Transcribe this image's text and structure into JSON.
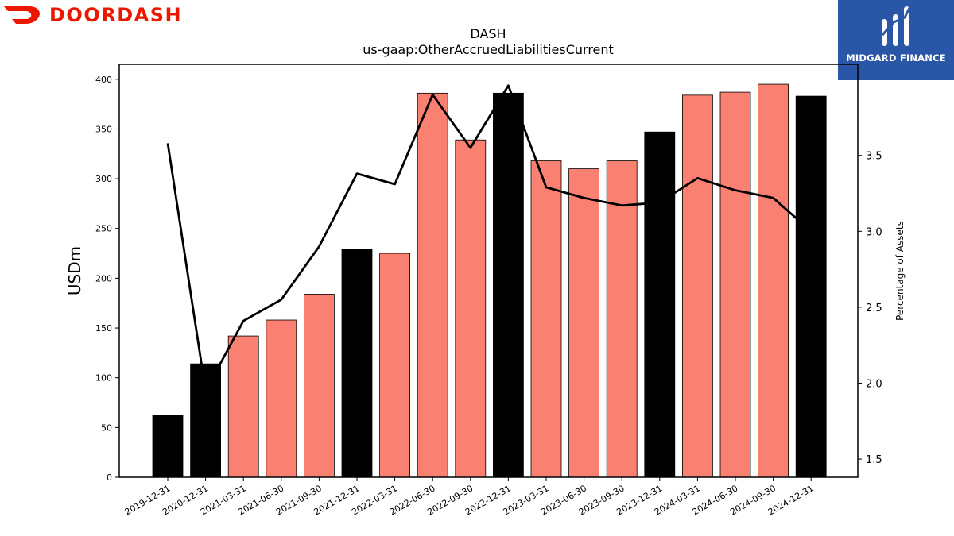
{
  "header": {
    "brand_name": "DOORDASH",
    "brand_icon": "doordash-dash-icon",
    "brand_color": "#eb1700",
    "badge_name": "MIDGARD FINANCE",
    "badge_icon": "midgard-logo-icon",
    "badge_color": "#2a56a8"
  },
  "chart_data": {
    "type": "bar",
    "title": "DASH",
    "subtitle": "us-gaap:OtherAccruedLiabilitiesCurrent",
    "ylabel": "USDm",
    "y2label": "Percentage of Assets",
    "ylim": [
      0,
      415
    ],
    "y2lim": [
      1.38,
      4.1
    ],
    "yticks": [
      0,
      50,
      100,
      150,
      200,
      250,
      300,
      350,
      400
    ],
    "y2ticks": [
      1.5,
      2.0,
      2.5,
      3.0,
      3.5
    ],
    "categories": [
      "2019-12-31",
      "2020-12-31",
      "2021-03-31",
      "2021-06-30",
      "2021-09-30",
      "2021-12-31",
      "2022-03-31",
      "2022-06-30",
      "2022-09-30",
      "2022-12-31",
      "2023-03-31",
      "2023-06-30",
      "2023-09-30",
      "2023-12-31",
      "2024-03-31",
      "2024-06-30",
      "2024-09-30",
      "2024-12-31"
    ],
    "series": [
      {
        "type": "bar",
        "values": [
          62,
          114,
          142,
          158,
          184,
          229,
          225,
          386,
          339,
          386,
          318,
          310,
          318,
          347,
          384,
          387,
          395,
          383
        ],
        "annual": [
          true,
          true,
          false,
          false,
          false,
          true,
          false,
          false,
          false,
          true,
          false,
          false,
          false,
          true,
          false,
          false,
          false,
          true
        ]
      },
      {
        "type": "line",
        "axis": "right",
        "values": [
          3.58,
          1.95,
          2.41,
          2.55,
          2.9,
          3.38,
          3.31,
          3.9,
          3.55,
          3.96,
          3.29,
          3.22,
          3.17,
          3.19,
          3.35,
          3.27,
          3.22,
          3.0
        ]
      }
    ],
    "colors": {
      "annual": "#000000",
      "quarter": "#fa8072",
      "line": "#000000"
    },
    "grid": false,
    "legend": "none"
  }
}
